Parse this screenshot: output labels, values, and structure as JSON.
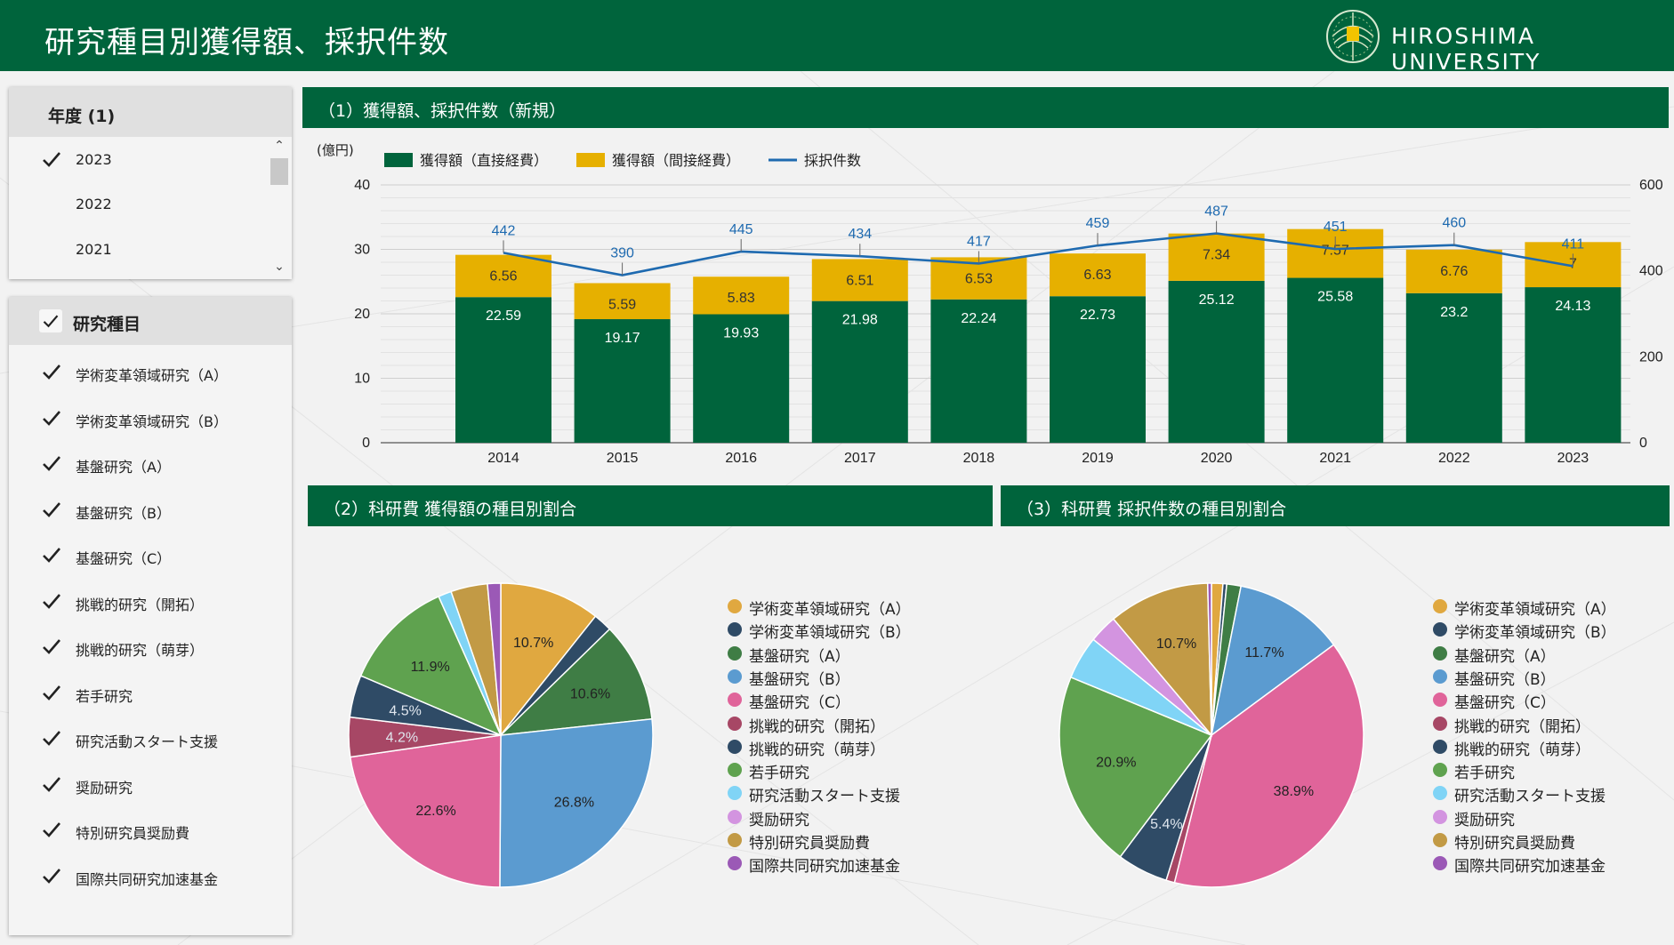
{
  "header": {
    "title": "研究種目別獲得額、採択件数",
    "logo_text": "HIROSHIMA UNIVERSITY",
    "color": "#00643c"
  },
  "year_filter": {
    "title": "年度 (1)",
    "items": [
      {
        "label": "2023",
        "checked": true
      },
      {
        "label": "2022",
        "checked": false
      },
      {
        "label": "2021",
        "checked": false
      }
    ]
  },
  "type_filter": {
    "title": "研究種目",
    "items": [
      {
        "label": "学術変革領域研究（A）",
        "checked": true
      },
      {
        "label": "学術変革領域研究（B）",
        "checked": true
      },
      {
        "label": "基盤研究（A）",
        "checked": true
      },
      {
        "label": "基盤研究（B）",
        "checked": true
      },
      {
        "label": "基盤研究（C）",
        "checked": true
      },
      {
        "label": "挑戦的研究（開拓）",
        "checked": true
      },
      {
        "label": "挑戦的研究（萌芽）",
        "checked": true
      },
      {
        "label": "若手研究",
        "checked": true
      },
      {
        "label": "研究活動スタート支援",
        "checked": true
      },
      {
        "label": "奨励研究",
        "checked": true
      },
      {
        "label": "特別研究員奨励費",
        "checked": true
      },
      {
        "label": "国際共同研究加速基金",
        "checked": true
      }
    ]
  },
  "sections": {
    "s1": "（1）獲得額、採択件数（新規）",
    "s2": "（2）科研費 獲得額の種目別割合",
    "s3": "（3）科研費 採択件数の種目別割合"
  },
  "chart_data": [
    {
      "type": "bar",
      "stacked": true,
      "title": "（1）獲得額、採択件数（新規）",
      "unit_label": "(億円)",
      "categories": [
        "2014",
        "2015",
        "2016",
        "2017",
        "2018",
        "2019",
        "2020",
        "2021",
        "2022",
        "2023"
      ],
      "series": [
        {
          "name": "獲得額（直接経費）",
          "type": "bar",
          "color": "#00643c",
          "values": [
            22.59,
            19.17,
            19.93,
            21.98,
            22.24,
            22.73,
            25.12,
            25.58,
            23.2,
            24.13
          ]
        },
        {
          "name": "獲得額（間接経費）",
          "type": "bar",
          "color": "#e6b000",
          "values": [
            6.56,
            5.59,
            5.83,
            6.51,
            6.53,
            6.63,
            7.34,
            7.57,
            6.76,
            7
          ]
        },
        {
          "name": "採択件数",
          "type": "line",
          "axis": "right",
          "color": "#1e6ab0",
          "values": [
            442,
            390,
            445,
            434,
            417,
            459,
            487,
            451,
            460,
            411
          ]
        }
      ],
      "ylim": [
        0,
        40
      ],
      "yticks": [
        0,
        10,
        20,
        30,
        40
      ],
      "y2lim": [
        0,
        600
      ],
      "y2ticks": [
        0,
        200,
        400,
        600
      ],
      "grid": true,
      "legend_position": "top-left"
    },
    {
      "type": "pie",
      "title": "（2）科研費 獲得額の種目別割合",
      "labels": [
        "学術変革領域研究（A）",
        "学術変革領域研究（B）",
        "基盤研究（A）",
        "基盤研究（B）",
        "基盤研究（C）",
        "挑戦的研究（開拓）",
        "挑戦的研究（萌芽）",
        "若手研究",
        "研究活動スタート支援",
        "奨励研究",
        "特別研究員奨励費",
        "国際共同研究加速基金"
      ],
      "values": [
        10.7,
        2.0,
        10.6,
        26.8,
        22.6,
        4.2,
        4.5,
        11.9,
        1.4,
        0.0,
        3.9,
        1.4
      ],
      "value_labels": [
        "10.7%",
        "",
        "10.6%",
        "26.8%",
        "22.6%",
        "4.2%",
        "4.5%",
        "11.9%",
        "",
        "",
        "",
        ""
      ],
      "colors": [
        "#e0a840",
        "#2f4b66",
        "#3f7d45",
        "#5b9bd0",
        "#e0649a",
        "#a74765",
        "#2f4b66",
        "#5fa24f",
        "#80d4f6",
        "#d394e0",
        "#c29a45",
        "#9b59b6"
      ]
    },
    {
      "type": "pie",
      "title": "（3）科研費 採択件数の種目別割合",
      "labels": [
        "学術変革領域研究（A）",
        "学術変革領域研究（B）",
        "基盤研究（A）",
        "基盤研究（B）",
        "基盤研究（C）",
        "挑戦的研究（開拓）",
        "挑戦的研究（萌芽）",
        "若手研究",
        "研究活動スタート支援",
        "奨励研究",
        "特別研究員奨励費",
        "国際共同研究加速基金"
      ],
      "values": [
        1.2,
        0.4,
        1.5,
        11.7,
        38.9,
        0.9,
        5.4,
        20.9,
        4.6,
        3.0,
        10.7,
        0.4
      ],
      "value_labels": [
        "",
        "",
        "",
        "11.7%",
        "38.9%",
        "",
        "5.4%",
        "20.9%",
        "",
        "",
        "10.7%",
        ""
      ],
      "colors": [
        "#e0a840",
        "#2f4b66",
        "#3f7d45",
        "#5b9bd0",
        "#e0649a",
        "#a74765",
        "#2f4b66",
        "#5fa24f",
        "#80d4f6",
        "#d394e0",
        "#c29a45",
        "#9b59b6"
      ]
    }
  ]
}
